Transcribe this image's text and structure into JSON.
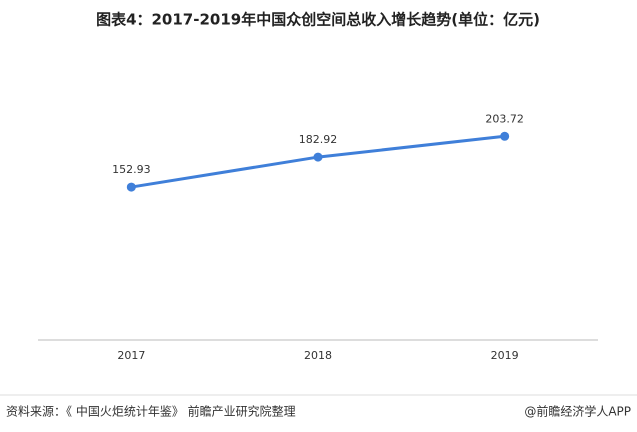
{
  "chart_data": {
    "type": "line",
    "title": "图表4：2017-2019年中国众创空间总收入增长趋势(单位：亿元)",
    "categories": [
      "2017",
      "2018",
      "2019"
    ],
    "series": [
      {
        "name": "总收入",
        "color": "#3f7fd9",
        "values": [
          152.93,
          182.92,
          203.72
        ]
      }
    ],
    "ylim": [
      0,
      300
    ],
    "source": "资料来源：《 中国火炬统计年鉴》 前瞻产业研究院整理",
    "credit": "@前瞻经济学人APP"
  }
}
